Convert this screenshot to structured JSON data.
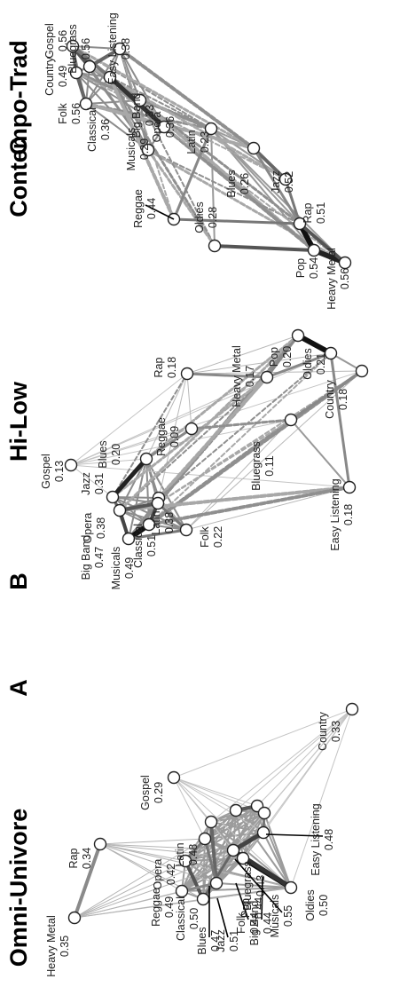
{
  "figure": {
    "panels": [
      {
        "id": "A",
        "letter": "A",
        "title": "Omni-Univore",
        "nodes": [
          {
            "id": "heavy_metal",
            "name": "Heavy Metal",
            "value": "0.35"
          },
          {
            "id": "rap",
            "name": "Rap",
            "value": "0.34"
          },
          {
            "id": "gospel",
            "name": "Gospel",
            "value": "0.29"
          },
          {
            "id": "country",
            "name": "Country",
            "value": "0.33"
          },
          {
            "id": "opera",
            "name": "Opera",
            "value": "0.42"
          },
          {
            "id": "latin",
            "name": "Latin",
            "value": "0.48"
          },
          {
            "id": "blues",
            "name": "Blues",
            "value": "0.47"
          },
          {
            "id": "bluegrass",
            "name": "Bluegrass",
            "value": "0.43"
          },
          {
            "id": "folk",
            "name": "Folk",
            "value": "0.44"
          },
          {
            "id": "big_band",
            "name": "Big Band",
            "value": "0.44"
          },
          {
            "id": "reggae",
            "name": "Reggae",
            "value": "0.49"
          },
          {
            "id": "classical",
            "name": "Classical",
            "value": "0.50"
          },
          {
            "id": "jazz",
            "name": "Jazz",
            "value": "0.51"
          },
          {
            "id": "pop",
            "name": "Pop",
            "value": "0.44"
          },
          {
            "id": "musicals",
            "name": "Musicals",
            "value": "0.55"
          },
          {
            "id": "oldies",
            "name": "Oldies",
            "value": "0.50"
          },
          {
            "id": "easy_listening",
            "name": "Easy Listening",
            "value": "0.48"
          }
        ]
      },
      {
        "id": "B",
        "letter": "B",
        "title": "Hi-Low",
        "nodes": [
          {
            "id": "gospel",
            "name": "Gospel",
            "value": "0.13"
          },
          {
            "id": "rap",
            "name": "Rap",
            "value": "0.18"
          },
          {
            "id": "heavy_metal",
            "name": "Heavy Metal",
            "value": "0.17"
          },
          {
            "id": "pop",
            "name": "Pop",
            "value": "0.20"
          },
          {
            "id": "oldies",
            "name": "Oldies",
            "value": "0.21"
          },
          {
            "id": "reggae",
            "name": "Reggae",
            "value": "0.09"
          },
          {
            "id": "blues",
            "name": "Blues",
            "value": "0.20"
          },
          {
            "id": "jazz",
            "name": "Jazz",
            "value": "0.31"
          },
          {
            "id": "opera",
            "name": "Opera",
            "value": "0.38"
          },
          {
            "id": "latin",
            "name": "Latin",
            "value": "0.38"
          },
          {
            "id": "big_band",
            "name": "Big Band",
            "value": "0.47"
          },
          {
            "id": "musicals",
            "name": "Musicals",
            "value": "0.49"
          },
          {
            "id": "classical",
            "name": "Classical",
            "value": "0.51"
          },
          {
            "id": "folk",
            "name": "Folk",
            "value": "0.22"
          },
          {
            "id": "bluegrass",
            "name": "Bluegrass",
            "value": "0.11"
          },
          {
            "id": "easy_listening",
            "name": "Easy Listening",
            "value": "0.18"
          },
          {
            "id": "country",
            "name": "Country",
            "value": "0.18"
          }
        ]
      },
      {
        "id": "C",
        "letter": "C",
        "title": "Contempo-Trad",
        "nodes": [
          {
            "id": "gospel",
            "name": "Gospel",
            "value": "0.56"
          },
          {
            "id": "country",
            "name": "Country",
            "value": "0.49"
          },
          {
            "id": "folk",
            "name": "Folk",
            "value": "0.56"
          },
          {
            "id": "classical",
            "name": "Classical",
            "value": "0.36"
          },
          {
            "id": "bluegrass",
            "name": "Bluegrass",
            "value": "0.56"
          },
          {
            "id": "easy_listening",
            "name": "Easy Listening",
            "value": "0.38"
          },
          {
            "id": "big_band",
            "name": "Big Band",
            "value": "0.33"
          },
          {
            "id": "musicals",
            "name": "Musicals",
            "value": "0.29"
          },
          {
            "id": "opera",
            "name": "Opera",
            "value": "0.36"
          },
          {
            "id": "reggae",
            "name": "Reggae",
            "value": "0.44"
          },
          {
            "id": "oldies",
            "name": "Oldies",
            "value": "0.28"
          },
          {
            "id": "latin",
            "name": "Latin",
            "value": "0.23"
          },
          {
            "id": "blues",
            "name": "Blues",
            "value": "0.26"
          },
          {
            "id": "jazz",
            "name": "Jazz",
            "value": "0.52"
          },
          {
            "id": "rap",
            "name": "Rap",
            "value": "0.51"
          },
          {
            "id": "pop",
            "name": "Pop",
            "value": "0.54"
          },
          {
            "id": "heavy_metal",
            "name": "Heavy Metal",
            "value": "0.56"
          }
        ]
      }
    ]
  }
}
